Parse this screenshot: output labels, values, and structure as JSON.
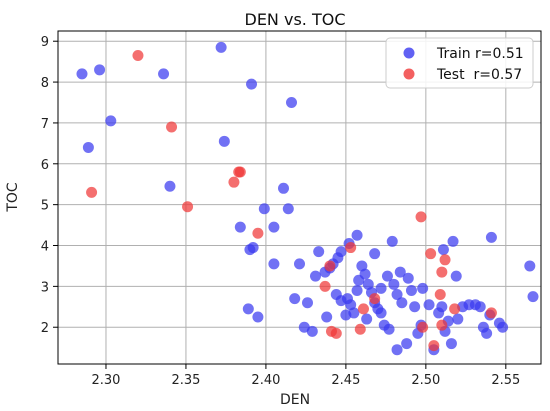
{
  "colors": {
    "train": "#3a3af0",
    "test": "#f03838",
    "grid": "#b0b0b0"
  },
  "chart_data": {
    "type": "scatter",
    "title": "DEN vs. TOC",
    "xlabel": "DEN",
    "ylabel": "TOC",
    "xlim": [
      2.27,
      2.572
    ],
    "ylim": [
      1.1,
      9.25
    ],
    "xticks": [
      2.3,
      2.35,
      2.4,
      2.45,
      2.5,
      2.55
    ],
    "xtick_labels": [
      "2.30",
      "2.35",
      "2.40",
      "2.45",
      "2.50",
      "2.55"
    ],
    "yticks": [
      2,
      3,
      4,
      5,
      6,
      7,
      8,
      9
    ],
    "ytick_labels": [
      "2",
      "3",
      "4",
      "5",
      "6",
      "7",
      "8",
      "9"
    ],
    "grid": true,
    "legend_position": "top-right",
    "series": [
      {
        "name": "Train r=0.51",
        "color": "#3a3af0",
        "points": [
          [
            2.285,
            8.2
          ],
          [
            2.296,
            8.3
          ],
          [
            2.303,
            7.05
          ],
          [
            2.289,
            6.4
          ],
          [
            2.336,
            8.2
          ],
          [
            2.34,
            5.45
          ],
          [
            2.372,
            8.85
          ],
          [
            2.391,
            7.95
          ],
          [
            2.374,
            6.55
          ],
          [
            2.416,
            7.5
          ],
          [
            2.384,
            4.45
          ],
          [
            2.39,
            3.9
          ],
          [
            2.392,
            3.95
          ],
          [
            2.399,
            4.9
          ],
          [
            2.405,
            4.45
          ],
          [
            2.411,
            5.4
          ],
          [
            2.414,
            4.9
          ],
          [
            2.405,
            3.55
          ],
          [
            2.395,
            2.25
          ],
          [
            2.389,
            2.45
          ],
          [
            2.418,
            2.7
          ],
          [
            2.421,
            3.55
          ],
          [
            2.426,
            2.6
          ],
          [
            2.424,
            2.0
          ],
          [
            2.429,
            1.9
          ],
          [
            2.431,
            3.25
          ],
          [
            2.433,
            3.85
          ],
          [
            2.437,
            3.35
          ],
          [
            2.44,
            3.45
          ],
          [
            2.442,
            3.55
          ],
          [
            2.445,
            3.7
          ],
          [
            2.447,
            3.85
          ],
          [
            2.444,
            2.8
          ],
          [
            2.447,
            2.65
          ],
          [
            2.451,
            2.7
          ],
          [
            2.453,
            2.55
          ],
          [
            2.455,
            2.35
          ],
          [
            2.457,
            2.9
          ],
          [
            2.452,
            4.05
          ],
          [
            2.457,
            4.25
          ],
          [
            2.458,
            3.15
          ],
          [
            2.462,
            3.3
          ],
          [
            2.46,
            3.5
          ],
          [
            2.464,
            3.05
          ],
          [
            2.466,
            2.85
          ],
          [
            2.468,
            2.6
          ],
          [
            2.47,
            2.45
          ],
          [
            2.472,
            2.35
          ],
          [
            2.474,
            2.05
          ],
          [
            2.477,
            1.95
          ],
          [
            2.476,
            3.25
          ],
          [
            2.48,
            3.05
          ],
          [
            2.482,
            2.8
          ],
          [
            2.485,
            2.6
          ],
          [
            2.479,
            4.1
          ],
          [
            2.484,
            3.35
          ],
          [
            2.489,
            3.2
          ],
          [
            2.491,
            2.9
          ],
          [
            2.493,
            2.5
          ],
          [
            2.495,
            1.85
          ],
          [
            2.482,
            1.45
          ],
          [
            2.488,
            1.6
          ],
          [
            2.497,
            2.05
          ],
          [
            2.502,
            2.55
          ],
          [
            2.505,
            1.45
          ],
          [
            2.508,
            2.35
          ],
          [
            2.51,
            2.5
          ],
          [
            2.512,
            1.9
          ],
          [
            2.514,
            2.15
          ],
          [
            2.516,
            1.6
          ],
          [
            2.52,
            2.2
          ],
          [
            2.511,
            3.9
          ],
          [
            2.517,
            4.1
          ],
          [
            2.519,
            3.25
          ],
          [
            2.523,
            2.5
          ],
          [
            2.527,
            2.55
          ],
          [
            2.531,
            2.55
          ],
          [
            2.534,
            2.5
          ],
          [
            2.536,
            2.0
          ],
          [
            2.538,
            1.85
          ],
          [
            2.54,
            2.3
          ],
          [
            2.541,
            4.2
          ],
          [
            2.546,
            2.1
          ],
          [
            2.548,
            2.0
          ],
          [
            2.565,
            3.5
          ],
          [
            2.567,
            2.75
          ],
          [
            2.468,
            3.8
          ],
          [
            2.472,
            2.95
          ],
          [
            2.498,
            2.95
          ],
          [
            2.438,
            2.25
          ],
          [
            2.45,
            2.3
          ],
          [
            2.463,
            2.2
          ]
        ]
      },
      {
        "name": "Test  r=0.57",
        "color": "#f03838",
        "points": [
          [
            2.291,
            5.3
          ],
          [
            2.32,
            8.65
          ],
          [
            2.341,
            6.9
          ],
          [
            2.351,
            4.95
          ],
          [
            2.38,
            5.55
          ],
          [
            2.384,
            5.8
          ],
          [
            2.383,
            5.8
          ],
          [
            2.395,
            4.3
          ],
          [
            2.437,
            3.0
          ],
          [
            2.44,
            3.5
          ],
          [
            2.441,
            1.9
          ],
          [
            2.444,
            1.85
          ],
          [
            2.453,
            3.95
          ],
          [
            2.459,
            1.95
          ],
          [
            2.461,
            2.45
          ],
          [
            2.468,
            2.7
          ],
          [
            2.497,
            4.7
          ],
          [
            2.498,
            2.0
          ],
          [
            2.503,
            3.8
          ],
          [
            2.505,
            1.55
          ],
          [
            2.509,
            2.8
          ],
          [
            2.51,
            3.35
          ],
          [
            2.512,
            3.65
          ],
          [
            2.51,
            2.05
          ],
          [
            2.518,
            2.45
          ],
          [
            2.541,
            2.35
          ]
        ]
      }
    ]
  }
}
